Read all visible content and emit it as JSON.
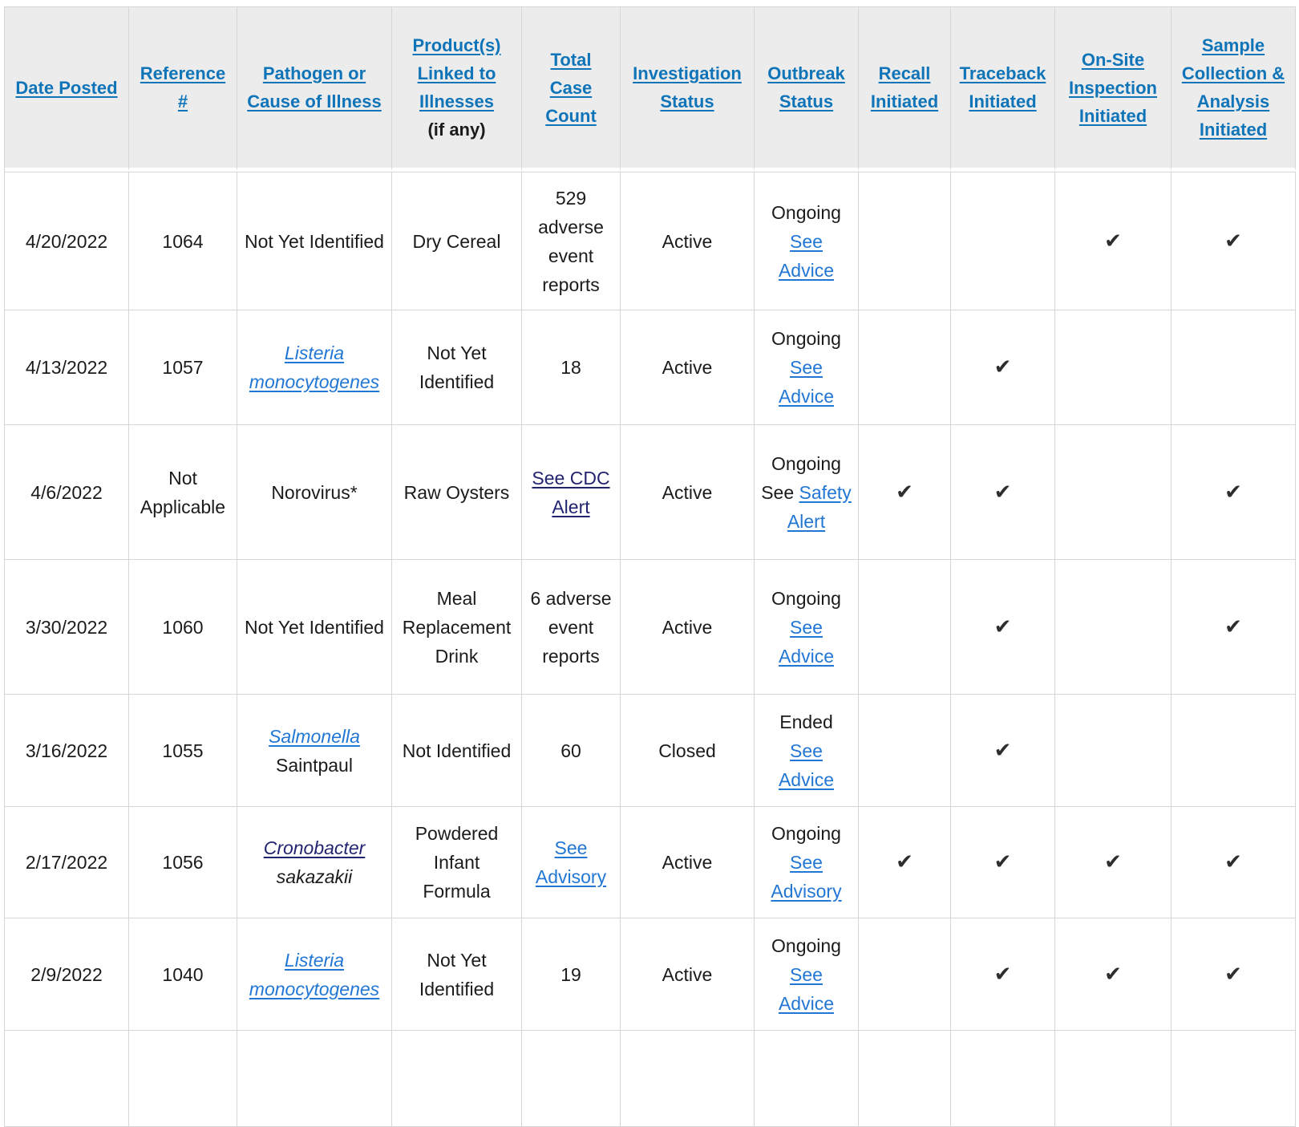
{
  "table": {
    "columns": [
      {
        "key": "date",
        "type": "text",
        "label": "Date Posted"
      },
      {
        "key": "reference",
        "type": "text",
        "label": "Reference #"
      },
      {
        "key": "pathogen",
        "type": "parts",
        "label": "Pathogen or Cause of Illness"
      },
      {
        "key": "products",
        "type": "parts",
        "label": "Product(s) Linked to Illnesses",
        "suffix": "(if any)"
      },
      {
        "key": "cases",
        "type": "parts",
        "label": "Total Case Count"
      },
      {
        "key": "investigation",
        "type": "text",
        "label": "Investigation Status"
      },
      {
        "key": "outbreak",
        "type": "parts",
        "label": "Outbreak Status"
      },
      {
        "key": "recall",
        "type": "check",
        "label": "Recall Initiated"
      },
      {
        "key": "traceback",
        "type": "check",
        "label": "Traceback Initiated"
      },
      {
        "key": "inspection",
        "type": "check",
        "label": "On-Site Inspection Initiated"
      },
      {
        "key": "sampling",
        "type": "check",
        "label": "Sample Collection & Analysis Initiated"
      }
    ],
    "rows": [
      {
        "date": "4/20/2022",
        "reference": "1064",
        "pathogen": [
          {
            "t": "Not Yet Identified"
          }
        ],
        "products": [
          {
            "t": "Dry Cereal"
          }
        ],
        "cases": [
          {
            "t": "529 adverse event reports"
          }
        ],
        "investigation": "Active",
        "outbreak": [
          {
            "t": "Ongoing"
          },
          {
            "t": "See Advice",
            "link": "light"
          }
        ],
        "recall": false,
        "traceback": false,
        "inspection": true,
        "sampling": true
      },
      {
        "date": "4/13/2022",
        "reference": "1057",
        "pathogen": [
          {
            "t": "Listeria monocytogenes",
            "link": "light",
            "i": true
          }
        ],
        "products": [
          {
            "t": "Not Yet Identified"
          }
        ],
        "cases": [
          {
            "t": "18"
          }
        ],
        "investigation": "Active",
        "outbreak": [
          {
            "t": "Ongoing"
          },
          {
            "t": "See Advice",
            "link": "light"
          }
        ],
        "recall": false,
        "traceback": true,
        "inspection": false,
        "sampling": false
      },
      {
        "date": "4/6/2022",
        "reference": "Not Applicable",
        "pathogen": [
          {
            "t": "Norovirus*"
          }
        ],
        "products": [
          {
            "t": "Raw Oysters"
          }
        ],
        "cases": [
          {
            "t": "See CDC Alert",
            "link": "dark"
          }
        ],
        "investigation": "Active",
        "outbreak": [
          {
            "t": "Ongoing See"
          },
          {
            "t": "Safety Alert",
            "link": "light"
          }
        ],
        "recall": true,
        "traceback": true,
        "inspection": false,
        "sampling": true
      },
      {
        "date": "3/30/2022",
        "reference": "1060",
        "pathogen": [
          {
            "t": "Not Yet Identified"
          }
        ],
        "products": [
          {
            "t": "Meal Replacement Drink"
          }
        ],
        "cases": [
          {
            "t": "6 adverse event reports"
          }
        ],
        "investigation": "Active",
        "outbreak": [
          {
            "t": "Ongoing"
          },
          {
            "t": "See Advice",
            "link": "light"
          }
        ],
        "recall": false,
        "traceback": true,
        "inspection": false,
        "sampling": true
      },
      {
        "date": "3/16/2022",
        "reference": "1055",
        "pathogen": [
          {
            "t": "Salmonella",
            "link": "light",
            "i": true
          },
          {
            "t": "Saintpaul"
          }
        ],
        "products": [
          {
            "t": "Not Identified"
          }
        ],
        "cases": [
          {
            "t": "60"
          }
        ],
        "investigation": "Closed",
        "outbreak": [
          {
            "t": "Ended"
          },
          {
            "t": "See Advice",
            "link": "light"
          }
        ],
        "recall": false,
        "traceback": true,
        "inspection": false,
        "sampling": false
      },
      {
        "date": "2/17/2022",
        "reference": "1056",
        "pathogen": [
          {
            "t": "Cronobacter",
            "link": "dark",
            "i": true
          },
          {
            "t": "sakazakii",
            "i": true
          }
        ],
        "products": [
          {
            "t": "Powdered Infant Formula"
          }
        ],
        "cases": [
          {
            "t": "See Advisory",
            "link": "light"
          }
        ],
        "investigation": "Active",
        "outbreak": [
          {
            "t": "Ongoing"
          },
          {
            "t": "See Advisory",
            "link": "light"
          }
        ],
        "recall": true,
        "traceback": true,
        "inspection": true,
        "sampling": true
      },
      {
        "date": "2/9/2022",
        "reference": "1040",
        "pathogen": [
          {
            "t": "Listeria monocytogenes",
            "link": "light",
            "i": true
          }
        ],
        "products": [
          {
            "t": "Not Yet Identified"
          }
        ],
        "cases": [
          {
            "t": "19"
          }
        ],
        "investigation": "Active",
        "outbreak": [
          {
            "t": "Ongoing"
          },
          {
            "t": "See Advice",
            "link": "light"
          }
        ],
        "recall": false,
        "traceback": true,
        "inspection": true,
        "sampling": true
      },
      {
        "partial": true,
        "date": "",
        "reference": "",
        "pathogen": [],
        "products": [],
        "cases": [],
        "investigation": "",
        "outbreak": [],
        "recall": false,
        "traceback": false,
        "inspection": false,
        "sampling": false
      }
    ]
  },
  "icons": {
    "check": "✔"
  },
  "colors": {
    "header_link": "#1074b8",
    "link_light": "#2277d4",
    "link_dark": "#23246f",
    "text": "#1b1b1b",
    "border": "#d6d6d6",
    "header_bg": "#ececec",
    "check": "#2e2e2e"
  }
}
